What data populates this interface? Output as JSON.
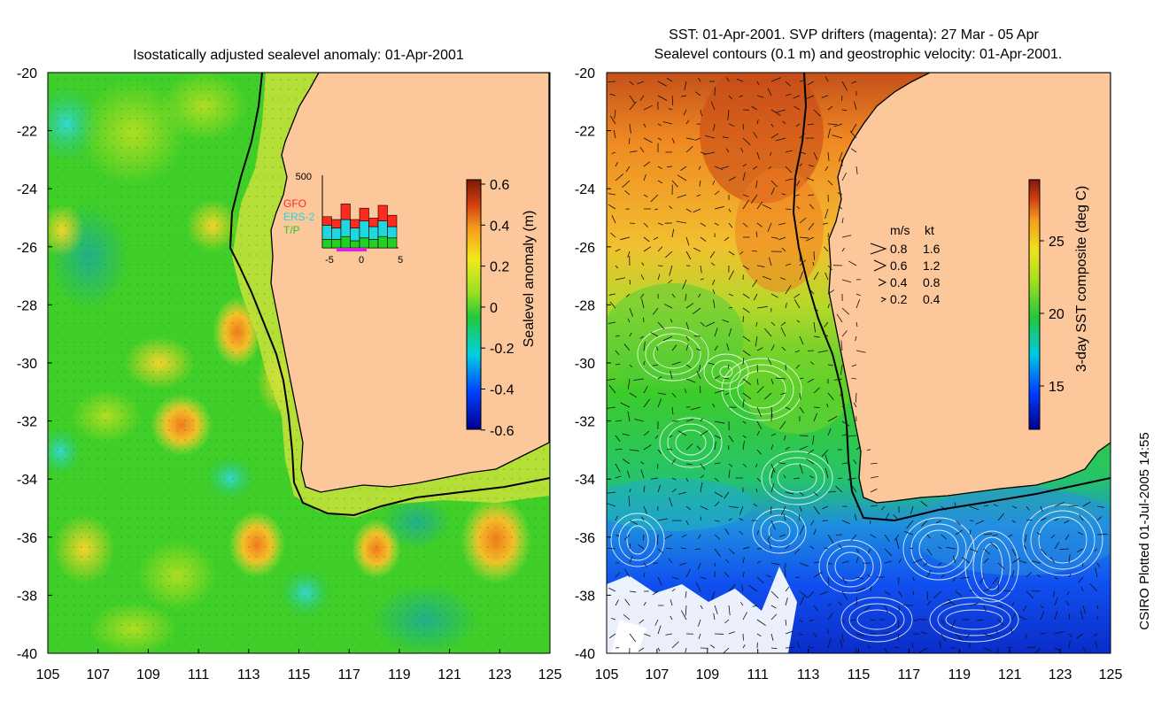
{
  "left_panel": {
    "title": "Isostatically adjusted sealevel anomaly: 01-Apr-2001",
    "colorbar_label": "Sealevel anomaly (m)",
    "colorbar_ticks": [
      "0.6",
      "0.4",
      "0.2",
      "0",
      "-0.2",
      "-0.4",
      "-0.6"
    ],
    "inset": {
      "ymax_label": "500",
      "legend": [
        {
          "label": "GFO",
          "color": "#ff2a1e"
        },
        {
          "label": "ERS-2",
          "color": "#20d7e0"
        },
        {
          "label": "T/P",
          "color": "#22d022"
        }
      ],
      "x_ticks": [
        "-5",
        "0",
        "5"
      ],
      "bars": [
        {
          "tp": 60,
          "ers": 100,
          "gfo": 60
        },
        {
          "tp": 60,
          "ers": 80,
          "gfo": 60
        },
        {
          "tp": 80,
          "ers": 120,
          "gfo": 110
        },
        {
          "tp": 50,
          "ers": 90,
          "gfo": 60
        },
        {
          "tp": 70,
          "ers": 120,
          "gfo": 90
        },
        {
          "tp": 60,
          "ers": 90,
          "gfo": 60
        },
        {
          "tp": 80,
          "ers": 110,
          "gfo": 110
        },
        {
          "tp": 70,
          "ers": 80,
          "gfo": 80
        }
      ]
    }
  },
  "right_panel": {
    "title_line1": "SST: 01-Apr-2001. SVP drifters (magenta): 27 Mar - 05 Apr",
    "title_line2": "Sealevel contours (0.1 m) and geostrophic velocity: 01-Apr-2001.",
    "colorbar_label": "3-day SST composite (deg C)",
    "colorbar_ticks": [
      "25",
      "20",
      "15"
    ],
    "speed_legend": {
      "header_ms": "m/s",
      "header_kt": "kt",
      "rows": [
        {
          "ms": "0.8",
          "kt": "1.6"
        },
        {
          "ms": "0.6",
          "kt": "1.2"
        },
        {
          "ms": "0.4",
          "kt": "0.8"
        },
        {
          "ms": "0.2",
          "kt": "0.4"
        }
      ]
    }
  },
  "axes": {
    "y_ticks": [
      "-20",
      "-22",
      "-24",
      "-26",
      "-28",
      "-30",
      "-32",
      "-34",
      "-36",
      "-38",
      "-40"
    ],
    "x_ticks": [
      "105",
      "107",
      "109",
      "111",
      "113",
      "115",
      "117",
      "119",
      "121",
      "123",
      "125"
    ]
  },
  "credit": "CSIRO Plotted 01-Jul-2005 14:55",
  "colors": {
    "land": "#fbc79b",
    "ocean_base": "#3fd31e",
    "coast": "#000000"
  }
}
